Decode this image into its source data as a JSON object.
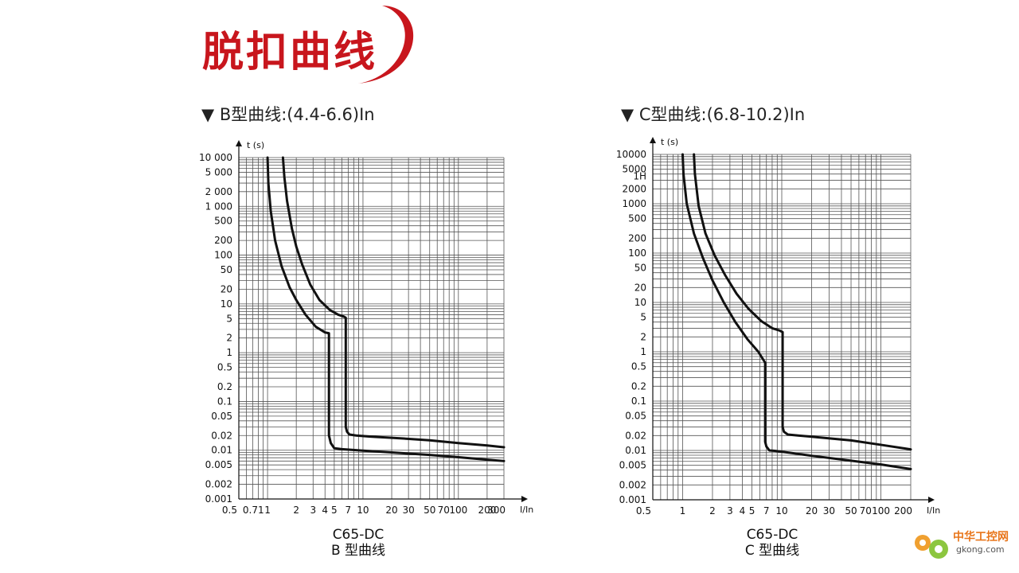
{
  "header": {
    "title": "脱扣曲线",
    "accent_color": "#c8161d"
  },
  "watermark": {
    "name": "中华工控网",
    "url": "gkong.com",
    "icon": "gear-icon",
    "color": "#e8751a"
  },
  "chart_data": [
    {
      "type": "line",
      "heading": "▼ B型曲线:(4.4-6.6)In",
      "caption_line1": "C65-DC",
      "caption_line2": "B 型曲线",
      "xlabel": "I/In",
      "ylabel": "t (s)",
      "x_scale": "log",
      "y_scale": "log",
      "xlim": [
        0.5,
        300
      ],
      "ylim": [
        0.001,
        10000
      ],
      "grid": true,
      "x_tick_labels": [
        {
          "value": 0.5,
          "label": "0.5"
        },
        {
          "value": 0.71,
          "label": "0.71"
        },
        {
          "value": 1,
          "label": "1"
        },
        {
          "value": 2,
          "label": "2"
        },
        {
          "value": 3,
          "label": "3"
        },
        {
          "value": 4,
          "label": "4"
        },
        {
          "value": 5,
          "label": "5"
        },
        {
          "value": 7,
          "label": "7"
        },
        {
          "value": 10,
          "label": "10"
        },
        {
          "value": 20,
          "label": "20"
        },
        {
          "value": 30,
          "label": "30"
        },
        {
          "value": 50,
          "label": "50"
        },
        {
          "value": 70,
          "label": "70"
        },
        {
          "value": 100,
          "label": "100"
        },
        {
          "value": 200,
          "label": "200"
        },
        {
          "value": 300,
          "label": "300"
        }
      ],
      "y_tick_labels": [
        {
          "value": 10000,
          "label": "10 000"
        },
        {
          "value": 5000,
          "label": "5 000"
        },
        {
          "value": 2000,
          "label": "2 000"
        },
        {
          "value": 1000,
          "label": "1 000"
        },
        {
          "value": 500,
          "label": "500"
        },
        {
          "value": 200,
          "label": "200"
        },
        {
          "value": 100,
          "label": "100"
        },
        {
          "value": 50,
          "label": "50"
        },
        {
          "value": 20,
          "label": "20"
        },
        {
          "value": 10,
          "label": "10"
        },
        {
          "value": 5,
          "label": "5"
        },
        {
          "value": 2,
          "label": "2"
        },
        {
          "value": 1,
          "label": "1"
        },
        {
          "value": 0.5,
          "label": "0.5"
        },
        {
          "value": 0.2,
          "label": "0.2"
        },
        {
          "value": 0.1,
          "label": "0.1"
        },
        {
          "value": 0.05,
          "label": "0.05"
        },
        {
          "value": 0.02,
          "label": "0.02"
        },
        {
          "value": 0.01,
          "label": "0.01"
        },
        {
          "value": 0.005,
          "label": "0.005"
        },
        {
          "value": 0.002,
          "label": "0.002"
        },
        {
          "value": 0.001,
          "label": "0.001"
        }
      ],
      "series": [
        {
          "x": [
            1.0,
            1.02,
            1.08,
            1.2,
            1.4,
            1.7,
            2.0,
            2.5,
            3.2,
            4.0,
            4.4,
            4.4,
            4.6,
            5.0,
            6.0,
            10,
            20,
            50,
            100,
            200,
            300
          ],
          "y": [
            10000,
            3000,
            800,
            200,
            60,
            22,
            12,
            6,
            3.4,
            2.6,
            2.5,
            0.02,
            0.014,
            0.011,
            0.0105,
            0.0098,
            0.009,
            0.008,
            0.0072,
            0.0064,
            0.006
          ]
        },
        {
          "x": [
            1.45,
            1.5,
            1.6,
            1.8,
            2.0,
            2.3,
            2.8,
            3.5,
            4.5,
            5.5,
            6.3,
            6.6,
            6.6,
            6.8,
            7.2,
            8.5,
            12,
            20,
            50,
            100,
            200,
            300
          ],
          "y": [
            10000,
            4000,
            1300,
            350,
            150,
            65,
            25,
            12,
            7.5,
            6,
            5.5,
            5.2,
            0.03,
            0.024,
            0.021,
            0.02,
            0.019,
            0.018,
            0.016,
            0.014,
            0.0125,
            0.0115
          ]
        }
      ]
    },
    {
      "type": "line",
      "heading": "▼ C型曲线:(6.8-10.2)In",
      "caption_line1": "C65-DC",
      "caption_line2": "C 型曲线",
      "xlabel": "I/In",
      "ylabel": "t (s)",
      "x_scale": "log",
      "y_scale": "log",
      "xlim": [
        0.5,
        200
      ],
      "ylim": [
        0.001,
        10000
      ],
      "grid": true,
      "x_tick_labels": [
        {
          "value": 0.5,
          "label": "0.5"
        },
        {
          "value": 1,
          "label": "1"
        },
        {
          "value": 2,
          "label": "2"
        },
        {
          "value": 3,
          "label": "3"
        },
        {
          "value": 4,
          "label": "4"
        },
        {
          "value": 5,
          "label": "5"
        },
        {
          "value": 7,
          "label": "7"
        },
        {
          "value": 10,
          "label": "10"
        },
        {
          "value": 20,
          "label": "20"
        },
        {
          "value": 30,
          "label": "30"
        },
        {
          "value": 50,
          "label": "50"
        },
        {
          "value": 70,
          "label": "70"
        },
        {
          "value": 100,
          "label": "100"
        },
        {
          "value": 200,
          "label": "200"
        }
      ],
      "y_tick_labels": [
        {
          "value": 10000,
          "label": "10000"
        },
        {
          "value": 5000,
          "label": "5000"
        },
        {
          "value": 3600,
          "label": "1H"
        },
        {
          "value": 2000,
          "label": "2000"
        },
        {
          "value": 1000,
          "label": "1000"
        },
        {
          "value": 500,
          "label": "500"
        },
        {
          "value": 200,
          "label": "200"
        },
        {
          "value": 100,
          "label": "100"
        },
        {
          "value": 50,
          "label": "50"
        },
        {
          "value": 20,
          "label": "20"
        },
        {
          "value": 10,
          "label": "10"
        },
        {
          "value": 5,
          "label": "5"
        },
        {
          "value": 2,
          "label": "2"
        },
        {
          "value": 1,
          "label": "1"
        },
        {
          "value": 0.5,
          "label": "0.5"
        },
        {
          "value": 0.2,
          "label": "0.2"
        },
        {
          "value": 0.1,
          "label": "0.1"
        },
        {
          "value": 0.05,
          "label": "0.05"
        },
        {
          "value": 0.02,
          "label": "0.02"
        },
        {
          "value": 0.01,
          "label": "0.01"
        },
        {
          "value": 0.005,
          "label": "0.005"
        },
        {
          "value": 0.002,
          "label": "0.002"
        },
        {
          "value": 0.001,
          "label": "0.001"
        }
      ],
      "series": [
        {
          "x": [
            1.0,
            1.02,
            1.1,
            1.3,
            1.6,
            2.0,
            2.6,
            3.4,
            4.5,
            5.8,
            6.8,
            6.8,
            7.0,
            7.5,
            8.5,
            12,
            20,
            50,
            100,
            200
          ],
          "y": [
            10000,
            4000,
            1000,
            250,
            80,
            28,
            10,
            4,
            1.8,
            1.0,
            0.6,
            0.015,
            0.012,
            0.01,
            0.0098,
            0.009,
            0.0078,
            0.0062,
            0.0052,
            0.0042
          ]
        },
        {
          "x": [
            1.3,
            1.33,
            1.45,
            1.7,
            2.1,
            2.7,
            3.5,
            4.6,
            6.2,
            8.0,
            9.5,
            10.2,
            10.2,
            10.5,
            11.5,
            15,
            20,
            50,
            100,
            200
          ],
          "y": [
            10000,
            4000,
            900,
            250,
            90,
            35,
            15,
            7.5,
            4.2,
            3.0,
            2.7,
            2.5,
            0.03,
            0.024,
            0.021,
            0.02,
            0.019,
            0.016,
            0.013,
            0.0105
          ]
        }
      ]
    }
  ]
}
